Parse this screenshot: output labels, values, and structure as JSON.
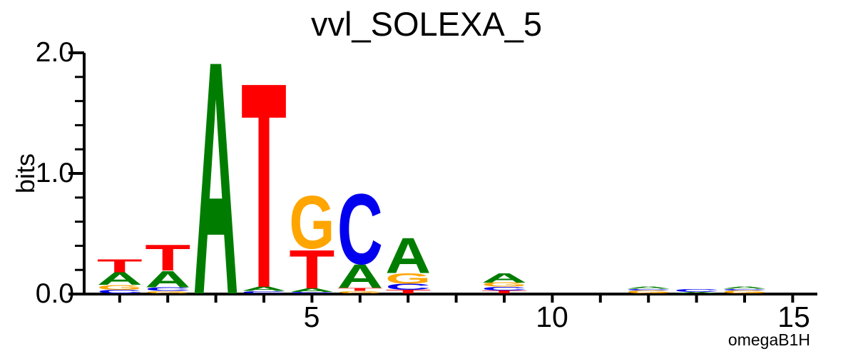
{
  "title": "vvl_SOLEXA_5",
  "chart_data": {
    "type": "sequence_logo",
    "title": "vvl_SOLEXA_5",
    "ylabel": "bits",
    "ylim": [
      0.0,
      2.0
    ],
    "yticks": [
      0.0,
      1.0,
      2.0
    ],
    "ytick_labels": [
      "0.0",
      "1.0",
      "2.0"
    ],
    "minor_ytick_step": 0.2,
    "num_positions": 15,
    "xticks": [
      5,
      10,
      15
    ],
    "xtick_labels": [
      "5",
      "10",
      "15"
    ],
    "fineprint": "omegaB1H",
    "legend": "none",
    "grid": false,
    "alphabet_colors": {
      "A": "#007D00",
      "C": "#0000EE",
      "G": "#FFA500",
      "T": "#FF0000"
    },
    "stacks": [
      {
        "position": 1,
        "letters": [
          {
            "base": "C",
            "bits": 0.03
          },
          {
            "base": "G",
            "bits": 0.04
          },
          {
            "base": "A",
            "bits": 0.105
          },
          {
            "base": "T",
            "bits": 0.11
          }
        ]
      },
      {
        "position": 2,
        "letters": [
          {
            "base": "G",
            "bits": 0.02
          },
          {
            "base": "C",
            "bits": 0.03
          },
          {
            "base": "A",
            "bits": 0.14
          },
          {
            "base": "T",
            "bits": 0.22
          }
        ]
      },
      {
        "position": 3,
        "letters": [
          {
            "base": "A",
            "bits": 1.99
          }
        ]
      },
      {
        "position": 4,
        "letters": [
          {
            "base": "C",
            "bits": 0.02
          },
          {
            "base": "A",
            "bits": 0.035
          },
          {
            "base": "T",
            "bits": 1.75
          }
        ]
      },
      {
        "position": 5,
        "letters": [
          {
            "base": "C",
            "bits": 0.012
          },
          {
            "base": "A",
            "bits": 0.03
          },
          {
            "base": "T",
            "bits": 0.33
          },
          {
            "base": "G",
            "bits": 0.45
          }
        ]
      },
      {
        "position": 6,
        "letters": [
          {
            "base": "G",
            "bits": 0.02
          },
          {
            "base": "T",
            "bits": 0.025
          },
          {
            "base": "A",
            "bits": 0.2
          },
          {
            "base": "C",
            "bits": 0.6
          }
        ]
      },
      {
        "position": 7,
        "letters": [
          {
            "base": "T",
            "bits": 0.03
          },
          {
            "base": "C",
            "bits": 0.05
          },
          {
            "base": "G",
            "bits": 0.09
          },
          {
            "base": "A",
            "bits": 0.3
          }
        ]
      },
      {
        "position": 8,
        "letters": []
      },
      {
        "position": 9,
        "letters": [
          {
            "base": "T",
            "bits": 0.025
          },
          {
            "base": "C",
            "bits": 0.03
          },
          {
            "base": "G",
            "bits": 0.035
          },
          {
            "base": "A",
            "bits": 0.08
          }
        ]
      },
      {
        "position": 10,
        "letters": []
      },
      {
        "position": 11,
        "letters": []
      },
      {
        "position": 12,
        "letters": [
          {
            "base": "G",
            "bits": 0.025
          },
          {
            "base": "C",
            "bits": 0.012
          },
          {
            "base": "A",
            "bits": 0.018
          }
        ]
      },
      {
        "position": 13,
        "letters": [
          {
            "base": "A",
            "bits": 0.012
          },
          {
            "base": "C",
            "bits": 0.025
          }
        ]
      },
      {
        "position": 14,
        "letters": [
          {
            "base": "G",
            "bits": 0.025
          },
          {
            "base": "C",
            "bits": 0.012
          },
          {
            "base": "A",
            "bits": 0.018
          }
        ]
      },
      {
        "position": 15,
        "letters": []
      }
    ]
  }
}
